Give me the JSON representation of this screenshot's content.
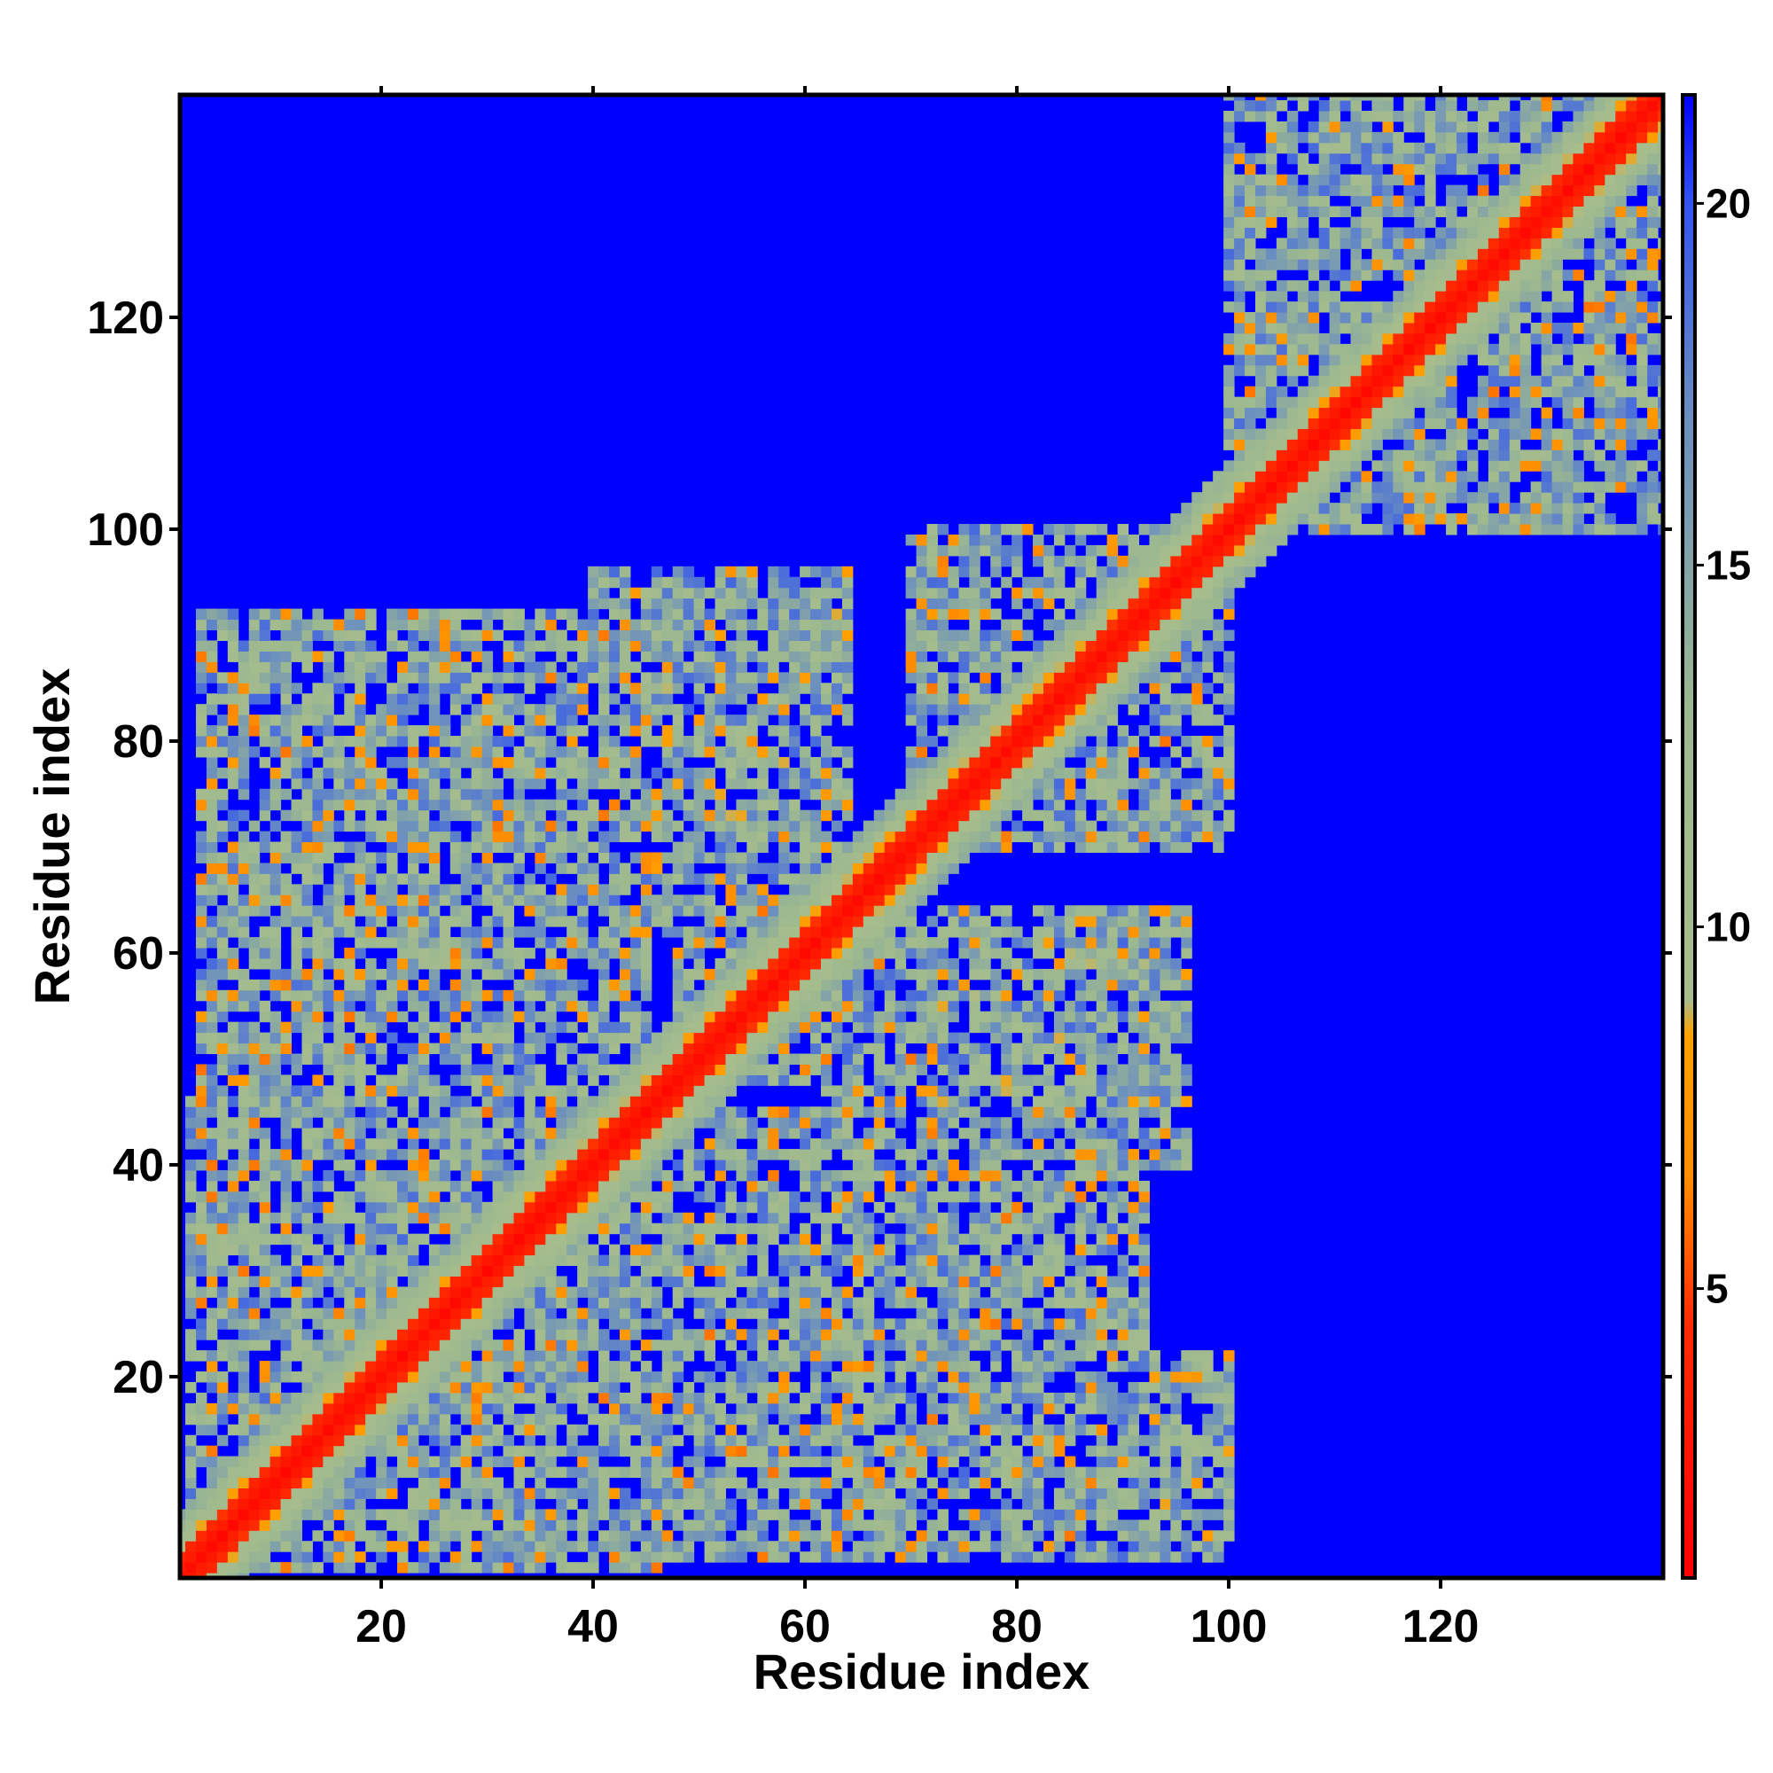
{
  "chart_data": {
    "type": "heatmap",
    "title": "",
    "xlabel": "Residue index",
    "ylabel": "Residue index",
    "xlim": [
      1,
      141
    ],
    "ylim": [
      1,
      141
    ],
    "x_ticks": [
      20,
      40,
      60,
      80,
      100,
      120
    ],
    "y_ticks": [
      20,
      40,
      60,
      80,
      100,
      120
    ],
    "n_residues": 141,
    "colorbar": {
      "ticks": [
        5,
        10,
        15,
        20
      ],
      "range": [
        1,
        21.5
      ],
      "stops": [
        {
          "value": 1,
          "color": "#ff0000"
        },
        {
          "value": 4.5,
          "color": "#ff2a00"
        },
        {
          "value": 6.5,
          "color": "#ff8c00"
        },
        {
          "value": 8.5,
          "color": "#ffa000"
        },
        {
          "value": 9.0,
          "color": "#a8bd8c"
        },
        {
          "value": 13.0,
          "color": "#9cb890"
        },
        {
          "value": 17.0,
          "color": "#6b8fbf"
        },
        {
          "value": 20.0,
          "color": "#3355ee"
        },
        {
          "value": 21.5,
          "color": "#0000ff"
        }
      ]
    },
    "background_value": 21.5,
    "diagonal": {
      "core_value": 1.5,
      "band_width": 2,
      "halo_width": 6
    },
    "contact_regions": [
      {
        "x": [
          2,
          46
        ],
        "y": [
          2,
          46
        ],
        "min_value": 6,
        "max_value": 19
      },
      {
        "x": [
          48,
          72
        ],
        "y": [
          48,
          72
        ],
        "min_value": 6,
        "max_value": 19
      },
      {
        "x": [
          70,
          100
        ],
        "y": [
          70,
          100
        ],
        "min_value": 6,
        "max_value": 19
      },
      {
        "x": [
          100,
          141
        ],
        "y": [
          100,
          141
        ],
        "min_value": 6,
        "max_value": 19
      },
      {
        "x": [
          3,
          45
        ],
        "y": [
          46,
          92
        ],
        "min_value": 6,
        "max_value": 19
      },
      {
        "x": [
          46,
          92
        ],
        "y": [
          3,
          45
        ],
        "min_value": 6,
        "max_value": 19
      },
      {
        "x": [
          40,
          64
        ],
        "y": [
          62,
          96
        ],
        "min_value": 7,
        "max_value": 19
      },
      {
        "x": [
          62,
          96
        ],
        "y": [
          40,
          64
        ],
        "min_value": 7,
        "max_value": 19
      },
      {
        "x": [
          70,
          95
        ],
        "y": [
          70,
          93
        ],
        "min_value": 7,
        "max_value": 19
      },
      {
        "x": [
          70,
          100
        ],
        "y": [
          3,
          22
        ],
        "min_value": 7,
        "max_value": 19
      }
    ]
  }
}
